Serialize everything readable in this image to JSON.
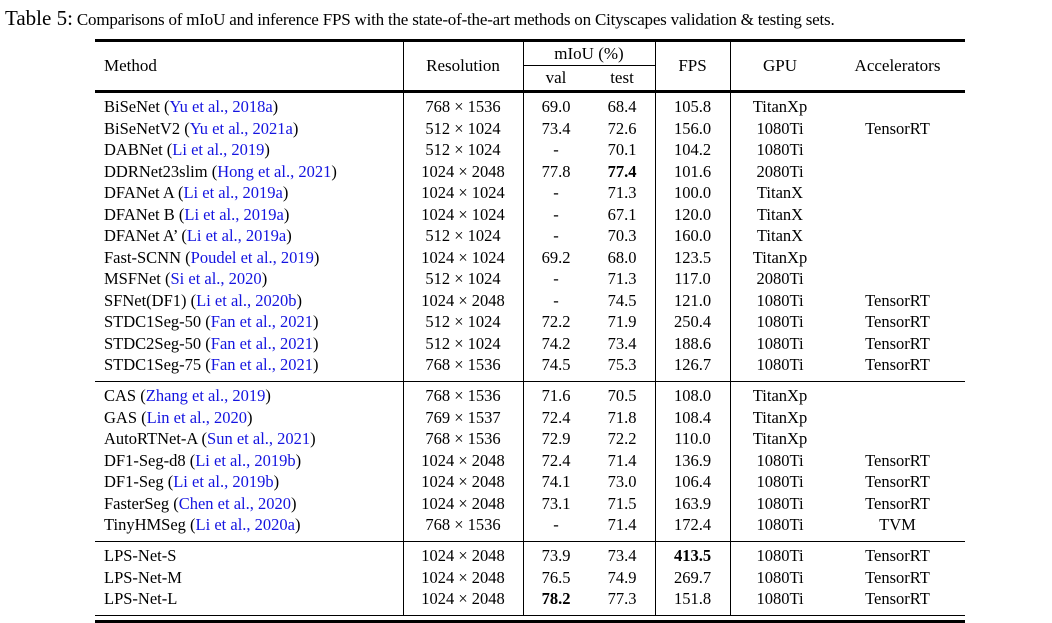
{
  "caption": {
    "label": "Table 5:",
    "text": "Comparisons of mIoU and inference FPS with the state-of-the-art methods on Cityscapes validation & testing sets."
  },
  "colors": {
    "citation_blue": "#1414e0",
    "text": "#000000",
    "rule": "#000000"
  },
  "table": {
    "header": {
      "method": "Method",
      "resolution": "Resolution",
      "miou_group": "mIoU (%)",
      "val": "val",
      "test": "test",
      "fps": "FPS",
      "gpu": "GPU",
      "accelerators": "Accelerators"
    },
    "groups": [
      {
        "rows": [
          {
            "name": "BiSeNet",
            "cite": "Yu et al., 2018a",
            "res": "768 × 1536",
            "val": "69.0",
            "test": "68.4",
            "fps": "105.8",
            "gpu": "TitanXp",
            "accel": "",
            "bold": []
          },
          {
            "name": "BiSeNetV2",
            "cite": "Yu et al., 2021a",
            "res": "512 × 1024",
            "val": "73.4",
            "test": "72.6",
            "fps": "156.0",
            "gpu": "1080Ti",
            "accel": "TensorRT",
            "bold": []
          },
          {
            "name": "DABNet",
            "cite": "Li et al., 2019",
            "res": "512 × 1024",
            "val": "-",
            "test": "70.1",
            "fps": "104.2",
            "gpu": "1080Ti",
            "accel": "",
            "bold": []
          },
          {
            "name": "DDRNet23slim",
            "cite": "Hong et al., 2021",
            "res": "1024 × 2048",
            "val": "77.8",
            "test": "77.4",
            "fps": "101.6",
            "gpu": "2080Ti",
            "accel": "",
            "bold": [
              "test"
            ]
          },
          {
            "name": "DFANet A",
            "cite": "Li et al., 2019a",
            "res": "1024 × 1024",
            "val": "-",
            "test": "71.3",
            "fps": "100.0",
            "gpu": "TitanX",
            "accel": "",
            "bold": []
          },
          {
            "name": "DFANet B",
            "cite": "Li et al., 2019a",
            "res": "1024 × 1024",
            "val": "-",
            "test": "67.1",
            "fps": "120.0",
            "gpu": "TitanX",
            "accel": "",
            "bold": []
          },
          {
            "name": "DFANet A’",
            "cite": "Li et al., 2019a",
            "res": "512 × 1024",
            "val": "-",
            "test": "70.3",
            "fps": "160.0",
            "gpu": "TitanX",
            "accel": "",
            "bold": []
          },
          {
            "name": "Fast-SCNN",
            "cite": "Poudel et al., 2019",
            "res": "1024 × 1024",
            "val": "69.2",
            "test": "68.0",
            "fps": "123.5",
            "gpu": "TitanXp",
            "accel": "",
            "bold": []
          },
          {
            "name": "MSFNet",
            "cite": "Si et al., 2020",
            "res": "512 × 1024",
            "val": "-",
            "test": "71.3",
            "fps": "117.0",
            "gpu": "2080Ti",
            "accel": "",
            "bold": []
          },
          {
            "name": "SFNet(DF1)",
            "cite": "Li et al., 2020b",
            "res": "1024 × 2048",
            "val": "-",
            "test": "74.5",
            "fps": "121.0",
            "gpu": "1080Ti",
            "accel": "TensorRT",
            "bold": []
          },
          {
            "name": "STDC1Seg-50",
            "cite": "Fan et al., 2021",
            "res": "512 × 1024",
            "val": "72.2",
            "test": "71.9",
            "fps": "250.4",
            "gpu": "1080Ti",
            "accel": "TensorRT",
            "bold": []
          },
          {
            "name": "STDC2Seg-50",
            "cite": "Fan et al., 2021",
            "res": "512 × 1024",
            "val": "74.2",
            "test": "73.4",
            "fps": "188.6",
            "gpu": "1080Ti",
            "accel": "TensorRT",
            "bold": []
          },
          {
            "name": "STDC1Seg-75",
            "cite": "Fan et al., 2021",
            "res": "768 × 1536",
            "val": "74.5",
            "test": "75.3",
            "fps": "126.7",
            "gpu": "1080Ti",
            "accel": "TensorRT",
            "bold": []
          }
        ]
      },
      {
        "rows": [
          {
            "name": "CAS",
            "cite": "Zhang et al., 2019",
            "res": "768 × 1536",
            "val": "71.6",
            "test": "70.5",
            "fps": "108.0",
            "gpu": "TitanXp",
            "accel": "",
            "bold": []
          },
          {
            "name": "GAS",
            "cite": "Lin et al., 2020",
            "res": "769 × 1537",
            "val": "72.4",
            "test": "71.8",
            "fps": "108.4",
            "gpu": "TitanXp",
            "accel": "",
            "bold": []
          },
          {
            "name": "AutoRTNet-A",
            "cite": "Sun et al., 2021",
            "res": "768 × 1536",
            "val": "72.9",
            "test": "72.2",
            "fps": "110.0",
            "gpu": "TitanXp",
            "accel": "",
            "bold": []
          },
          {
            "name": "DF1-Seg-d8",
            "cite": "Li et al., 2019b",
            "res": "1024 × 2048",
            "val": "72.4",
            "test": "71.4",
            "fps": "136.9",
            "gpu": "1080Ti",
            "accel": "TensorRT",
            "bold": []
          },
          {
            "name": "DF1-Seg",
            "cite": "Li et al., 2019b",
            "res": "1024 × 2048",
            "val": "74.1",
            "test": "73.0",
            "fps": "106.4",
            "gpu": "1080Ti",
            "accel": "TensorRT",
            "bold": []
          },
          {
            "name": "FasterSeg",
            "cite": "Chen et al., 2020",
            "res": "1024 × 2048",
            "val": "73.1",
            "test": "71.5",
            "fps": "163.9",
            "gpu": "1080Ti",
            "accel": "TensorRT",
            "bold": []
          },
          {
            "name": "TinyHMSeg",
            "cite": "Li et al., 2020a",
            "res": "768 × 1536",
            "val": "-",
            "test": "71.4",
            "fps": "172.4",
            "gpu": "1080Ti",
            "accel": "TVM",
            "bold": []
          }
        ]
      },
      {
        "rows": [
          {
            "name": "LPS-Net-S",
            "cite": "",
            "res": "1024 × 2048",
            "val": "73.9",
            "test": "73.4",
            "fps": "413.5",
            "gpu": "1080Ti",
            "accel": "TensorRT",
            "bold": [
              "fps"
            ]
          },
          {
            "name": "LPS-Net-M",
            "cite": "",
            "res": "1024 × 2048",
            "val": "76.5",
            "test": "74.9",
            "fps": "269.7",
            "gpu": "1080Ti",
            "accel": "TensorRT",
            "bold": []
          },
          {
            "name": "LPS-Net-L",
            "cite": "",
            "res": "1024 × 2048",
            "val": "78.2",
            "test": "77.3",
            "fps": "151.8",
            "gpu": "1080Ti",
            "accel": "TensorRT",
            "bold": [
              "val"
            ]
          }
        ]
      }
    ]
  }
}
